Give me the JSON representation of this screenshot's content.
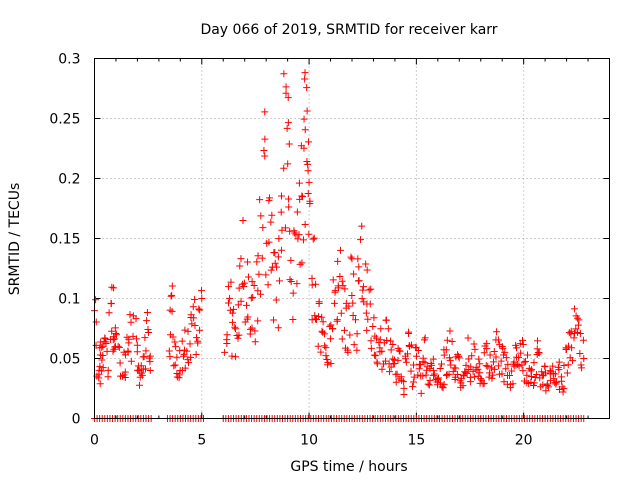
{
  "chart_data": {
    "type": "scatter",
    "title": "Day 066 of 2019, SRMTID for receiver karr",
    "xlabel": "GPS time / hours",
    "ylabel": "SRMTID / TECUs",
    "xlim": [
      0,
      24
    ],
    "ylim": [
      0,
      0.3
    ],
    "xticks": [
      0,
      5,
      10,
      15,
      20
    ],
    "yticks": [
      0,
      0.05,
      0.1,
      0.15,
      0.2,
      0.25,
      0.3
    ],
    "xtick_labels": [
      "0",
      "5",
      "10",
      "15",
      "20"
    ],
    "ytick_labels": [
      "0",
      "0.05",
      "0.1",
      "0.15",
      "0.2",
      "0.25",
      "0.3"
    ],
    "grid": true,
    "marker": "plus",
    "color": "#ff0000",
    "x_max_observed": 22.9,
    "series": [
      {
        "name": "SRMTID",
        "description_level": "approximate trend read from plot",
        "x": [
          0.0,
          0.2,
          0.3,
          0.4,
          0.6,
          0.8,
          0.9,
          1.0,
          1.3,
          1.5,
          1.7,
          2.0,
          2.1,
          2.3,
          2.5,
          2.6,
          3.5,
          3.6,
          3.8,
          4.0,
          4.2,
          4.4,
          4.6,
          4.8,
          5.0,
          6.1,
          6.3,
          6.5,
          6.7,
          6.9,
          7.1,
          7.3,
          7.5,
          7.7,
          7.9,
          8.1,
          8.3,
          8.5,
          8.7,
          8.9,
          9.0,
          9.1,
          9.3,
          9.5,
          9.7,
          9.8,
          9.9,
          10.0,
          10.2,
          10.4,
          10.6,
          10.8,
          11.0,
          11.2,
          11.4,
          11.6,
          11.8,
          12.0,
          12.2,
          12.4,
          12.6,
          12.8,
          13.0,
          13.2,
          13.4,
          13.6,
          13.8,
          14.0,
          14.2,
          14.4,
          14.6,
          14.8,
          15.0,
          15.2,
          15.4,
          15.6,
          15.8,
          16.0,
          16.2,
          16.4,
          16.6,
          16.8,
          17.0,
          17.2,
          17.4,
          17.6,
          17.8,
          18.0,
          18.2,
          18.4,
          18.6,
          18.8,
          19.0,
          19.2,
          19.4,
          19.6,
          19.8,
          20.0,
          20.2,
          20.4,
          20.6,
          20.8,
          21.0,
          21.2,
          21.4,
          21.6,
          21.8,
          22.0,
          22.2,
          22.4,
          22.6,
          22.8
        ],
        "y": [
          0.085,
          0.035,
          0.05,
          0.065,
          0.045,
          0.09,
          0.08,
          0.06,
          0.04,
          0.055,
          0.07,
          0.06,
          0.03,
          0.05,
          0.07,
          0.04,
          0.06,
          0.09,
          0.04,
          0.05,
          0.06,
          0.065,
          0.07,
          0.08,
          0.1,
          0.045,
          0.09,
          0.07,
          0.06,
          0.13,
          0.11,
          0.08,
          0.1,
          0.14,
          0.2,
          0.15,
          0.13,
          0.1,
          0.14,
          0.25,
          0.29,
          0.16,
          0.12,
          0.15,
          0.18,
          0.24,
          0.21,
          0.14,
          0.12,
          0.08,
          0.07,
          0.06,
          0.07,
          0.1,
          0.12,
          0.09,
          0.08,
          0.11,
          0.07,
          0.13,
          0.1,
          0.09,
          0.08,
          0.07,
          0.06,
          0.07,
          0.05,
          0.04,
          0.05,
          0.03,
          0.06,
          0.04,
          0.05,
          0.03,
          0.06,
          0.04,
          0.05,
          0.04,
          0.035,
          0.05,
          0.06,
          0.04,
          0.045,
          0.03,
          0.05,
          0.04,
          0.06,
          0.03,
          0.045,
          0.05,
          0.04,
          0.06,
          0.05,
          0.04,
          0.035,
          0.06,
          0.045,
          0.05,
          0.04,
          0.03,
          0.05,
          0.04,
          0.035,
          0.03,
          0.045,
          0.04,
          0.03,
          0.05,
          0.06,
          0.08,
          0.07,
          0.05
        ]
      },
      {
        "name": "zero-baseline",
        "description_level": "dense row of points at y=0 across data coverage",
        "x_ranges": [
          [
            0.0,
            2.7
          ],
          [
            3.4,
            5.2
          ],
          [
            6.0,
            22.9
          ]
        ],
        "y_value": 0
      }
    ]
  }
}
